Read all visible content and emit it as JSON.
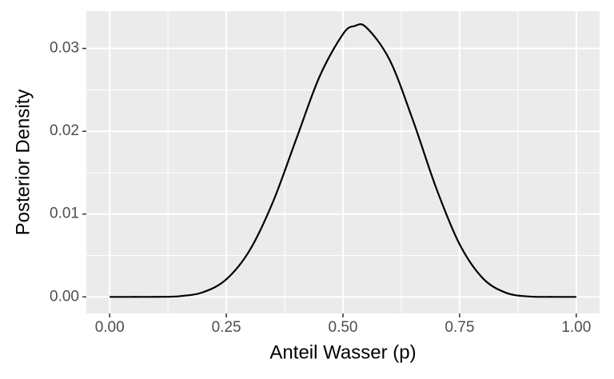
{
  "chart_data": {
    "type": "line",
    "xlabel": "Anteil Wasser (p)",
    "ylabel": "Posterior Density",
    "x": [
      0,
      0.05,
      0.1,
      0.15,
      0.2,
      0.25,
      0.3,
      0.35,
      0.4,
      0.45,
      0.5,
      0.525,
      0.55,
      0.6,
      0.65,
      0.7,
      0.75,
      0.8,
      0.85,
      0.9,
      0.95,
      1
    ],
    "series": [
      {
        "color": "#000000",
        "values": [
          0,
          0,
          5e-06,
          8.5e-05,
          0.00056,
          0.00212,
          0.00562,
          0.01148,
          0.01908,
          0.02663,
          0.03174,
          0.03271,
          0.03254,
          0.02862,
          0.02132,
          0.01311,
          0.00635,
          0.00223,
          0.00048,
          4.5e-05,
          0,
          0
        ]
      }
    ],
    "xlim": [
      -0.05,
      1.05
    ],
    "ylim": [
      -0.002,
      0.0345
    ],
    "xticks": [
      {
        "value": 0,
        "label": "0.00"
      },
      {
        "value": 0.25,
        "label": "0.25"
      },
      {
        "value": 0.5,
        "label": "0.50"
      },
      {
        "value": 0.75,
        "label": "0.75"
      },
      {
        "value": 1,
        "label": "1.00"
      }
    ],
    "yticks": [
      {
        "value": 0,
        "label": "0.00"
      },
      {
        "value": 0.01,
        "label": "0.01"
      },
      {
        "value": 0.02,
        "label": "0.02"
      },
      {
        "value": 0.03,
        "label": "0.03"
      }
    ],
    "grid": true
  }
}
